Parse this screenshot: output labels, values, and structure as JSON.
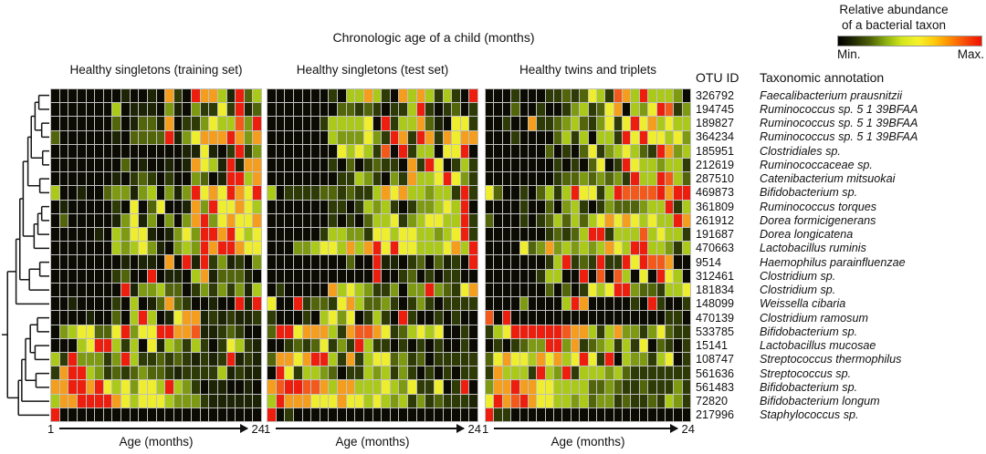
{
  "figure_title": "Chronologic age of a child (months)",
  "legend": {
    "title_line1": "Relative abundance",
    "title_line2": "of a bacterial taxon",
    "min_label": "Min.",
    "max_label": "Max.",
    "gradient_colors": [
      "#000000",
      "#222b04",
      "#4d6008",
      "#8cb010",
      "#d3e61c",
      "#f4f22a",
      "#ffcc0d",
      "#ff8c00",
      "#f84a08",
      "#f01000"
    ]
  },
  "axis": {
    "start": "1",
    "end": "24",
    "label": "Age (months)"
  },
  "otu_table": {
    "id_header": "OTU ID",
    "taxon_header": "Taxonomic annotation",
    "rows": [
      {
        "id": "326792",
        "taxon": "Faecalibacterium prausnitzii"
      },
      {
        "id": "194745",
        "taxon": "Ruminococcus sp. 5 1 39BFAA"
      },
      {
        "id": "189827",
        "taxon": "Ruminococcus sp. 5 1 39BFAA"
      },
      {
        "id": "364234",
        "taxon": "Ruminococcus sp. 5 1 39BFAA"
      },
      {
        "id": "185951",
        "taxon": "Clostridiales sp."
      },
      {
        "id": "212619",
        "taxon": "Ruminococcaceae sp."
      },
      {
        "id": "287510",
        "taxon": "Catenibacterium mitsuokai"
      },
      {
        "id": "469873",
        "taxon": "Bifidobacterium sp."
      },
      {
        "id": "361809",
        "taxon": "Ruminococcus torques"
      },
      {
        "id": "261912",
        "taxon": "Dorea formicigenerans"
      },
      {
        "id": "191687",
        "taxon": "Dorea longicatena"
      },
      {
        "id": "470663",
        "taxon": "Lactobacillus ruminis"
      },
      {
        "id": "9514",
        "taxon": "Haemophilus parainfluenzae"
      },
      {
        "id": "312461",
        "taxon": "Clostridium sp."
      },
      {
        "id": "181834",
        "taxon": "Clostridium sp."
      },
      {
        "id": "148099",
        "taxon": "Weissella cibaria"
      },
      {
        "id": "470139",
        "taxon": "Clostridium ramosum"
      },
      {
        "id": "533785",
        "taxon": "Bifidobacterium sp."
      },
      {
        "id": "15141",
        "taxon": "Lactobacillus mucosae"
      },
      {
        "id": "108747",
        "taxon": "Streptococcus thermophilus"
      },
      {
        "id": "561636",
        "taxon": "Streptococcus sp."
      },
      {
        "id": "561483",
        "taxon": "Bifidobacterium sp."
      },
      {
        "id": "72820",
        "taxon": "Bifidobacterium longum"
      },
      {
        "id": "217996",
        "taxon": "Staphylococcus sp."
      }
    ]
  },
  "chart_data": {
    "type": "heatmap",
    "x_axis": {
      "label": "Age (months)",
      "start": 1,
      "end": 24,
      "n_columns": 24
    },
    "value_encoding": "each character is relative abundance level 0 (min, black) to 9 (max, red)",
    "palette": {
      "0": "#0b0b03",
      "1": "#1c2405",
      "2": "#2f3b07",
      "3": "#53650b",
      "4": "#7d9a12",
      "5": "#abc919",
      "6": "#eeee2e",
      "7": "#f59d1c",
      "8": "#f2591a",
      "9": "#ed1e0e"
    },
    "row_labels_are": "OTUs listed in otu_table.rows (top to bottom)",
    "panels": [
      {
        "title": "Healthy singletons (training set)",
        "rows": [
          "000000001001072097751935",
          "000000050111041042262913",
          "000000030133170224655849",
          "300000010333391467779747",
          "000000000000000116102924",
          "000000003010010176519177",
          "000000010232020043019957",
          "500100344145041496769769",
          "010000020603600174966765",
          "030000014614040479467667",
          "000001054661014649979656",
          "000000054564104549799766",
          "000000001011070919241204",
          "000000023009011057133310",
          "000000009144533024242415",
          "001000020501373200100919",
          "000010030595016771212112",
          "045663369466997781123200",
          "000569952506154252026521",
          "529444249522323212129121",
          "279954232343321222251211",
          "779979656466595420110010",
          "577999976566654442111111",
          "900000000000000000000000"
        ]
      },
      {
        "title": "Healthy singletons (test set)",
        "rows": [
          "000000020557520757525209",
          "000000003323202259202302",
          "000000255556092557310662",
          "000000054446429729727677",
          "000000006565280925506690",
          "000000020302322072960252",
          "000000002254204275569642",
          "502222332322576755455292",
          "000000022025452024456590",
          "000000020203556245665592",
          "000000255442665665545692",
          "000445665757969665556759",
          "000000000300911023031209",
          "000000000000900230202200",
          "020000075654224044943267",
          "600923326753342024202222",
          "200020564602520920020200",
          "399677752788762356560020",
          "002323624295220202020020",
          "377679952725663423022222",
          "096255430225452420202022",
          "789988757755565462260290",
          "597776667665654524232221",
          "902000000000000000000000"
        ]
      },
      {
        "title": "Healthy twins and triplets",
        "rows": [
          "000200022323652875955540",
          "000300200245236705469824",
          "002007223453246269675655",
          "000200003525055296966564",
          "000000030203624565329745",
          "000000002020360296554552",
          "000000002334343429559853",
          "630020352596625988889799",
          "000020030452024333455925",
          "300020235353567676565597",
          "000000023235992555856552",
          "000063474545457659955425",
          "000000025923292296988700",
          "000000255009080850609650",
          "000000030302656994332556",
          "000040000597000002092002",
          "809000000000000000000220",
          "256999999877525744246322",
          "020234499472345252603202",
          "367665767569629054425602",
          "275552954925554532222222",
          "477977665555334322322242",
          "697897665545344232232542",
          "922000000000000000000000"
        ]
      }
    ],
    "dendrogram_tree": {
      "d": 0.12,
      "c": [
        {
          "d": 0.3,
          "c": [
            {
              "d": 0.38,
              "c": [
                {
                  "d": 0.45,
                  "c": [
                    {
                      "d": 0.55,
                      "c": [
                        {
                          "d": 0.62,
                          "c": [
                            {
                              "d": 0.7,
                              "c": [
                                {
                                  "d": 0.78,
                                  "c": [
                                    1,
                                    2
                                  ]
                                },
                                {
                                  "d": 0.84,
                                  "c": [
                                    3,
                                    4
                                  ]
                                }
                              ]
                            },
                            {
                              "d": 0.86,
                              "c": [
                                5,
                                6
                              ]
                            }
                          ]
                        },
                        {
                          "d": 0.8,
                          "c": [
                            7,
                            8
                          ]
                        }
                      ]
                    },
                    {
                      "d": 0.68,
                      "c": [
                        {
                          "d": 0.76,
                          "c": [
                            {
                              "d": 0.84,
                              "c": [
                                9,
                                10
                              ]
                            },
                            11
                          ]
                        },
                        12
                      ]
                    }
                  ]
                },
                {
                  "d": 0.58,
                  "c": [
                    {
                      "d": 0.8,
                      "c": [
                        13,
                        14
                      ]
                    },
                    15
                  ]
                }
              ]
            },
            16
          ]
        },
        {
          "d": 0.35,
          "c": [
            {
              "d": 0.42,
              "c": [
                {
                  "d": 0.5,
                  "c": [
                    {
                      "d": 0.6,
                      "c": [
                        {
                          "d": 0.75,
                          "c": [
                            17,
                            18
                          ]
                        },
                        {
                          "d": 0.7,
                          "c": [
                            19,
                            20
                          ]
                        }
                      ]
                    },
                    {
                      "d": 0.72,
                      "c": [
                        21,
                        22
                      ]
                    }
                  ]
                },
                23
              ]
            },
            24
          ]
        }
      ]
    }
  }
}
